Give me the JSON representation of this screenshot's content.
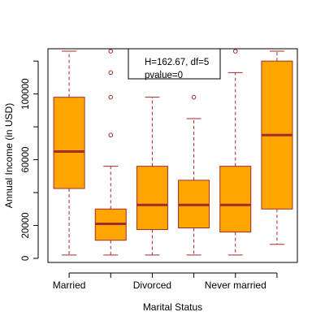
{
  "chart_data": {
    "type": "boxplot",
    "xlabel": "Marital Status",
    "ylabel": "Annual Income (in USD)",
    "ylim": [
      -2500,
      127500
    ],
    "y_ticks": [
      0,
      20000,
      60000,
      100000
    ],
    "x_tick_labels": [
      "Married",
      "",
      "Divorced",
      "",
      "Never married",
      ""
    ],
    "categories": [
      "Married",
      "",
      "Divorced",
      "",
      "Never married",
      ""
    ],
    "boxes": [
      {
        "lower_whisker": 2000,
        "q1": 42500,
        "median": 65000,
        "q3": 98000,
        "upper_whisker": 126000,
        "outliers": []
      },
      {
        "lower_whisker": 2000,
        "q1": 11000,
        "median": 21000,
        "q3": 30000,
        "upper_whisker": 56000,
        "outliers": [
          75000,
          98000,
          113000,
          126000
        ]
      },
      {
        "lower_whisker": 2000,
        "q1": 17500,
        "median": 32500,
        "q3": 56000,
        "upper_whisker": 98000,
        "outliers": []
      },
      {
        "lower_whisker": 2000,
        "q1": 18500,
        "median": 32500,
        "q3": 47500,
        "upper_whisker": 85000,
        "outliers": [
          98000
        ]
      },
      {
        "lower_whisker": 2000,
        "q1": 16000,
        "median": 32500,
        "q3": 56000,
        "upper_whisker": 113000,
        "outliers": [
          126000
        ]
      },
      {
        "lower_whisker": 8500,
        "q1": 30000,
        "median": 75000,
        "q3": 120000,
        "upper_whisker": 126000,
        "outliers": []
      }
    ],
    "annotation": [
      "H=162.67, df=5",
      "pvalue=0"
    ],
    "colors": {
      "box_fill": "#FFA500",
      "box_border": "#A52A2A",
      "median": "#A52A2A",
      "whisker": "#A52A2A",
      "outlier": "#A52A2A",
      "axis": "#000000"
    },
    "grid": false
  }
}
